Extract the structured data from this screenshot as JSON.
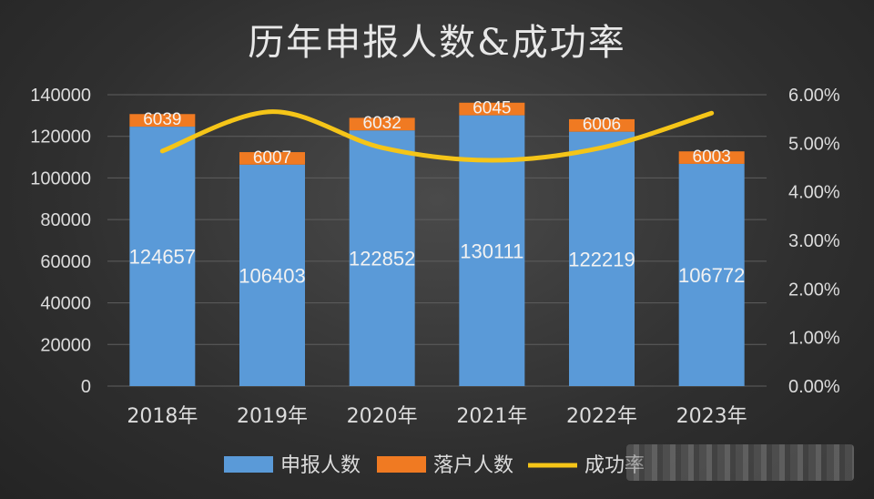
{
  "chart_data": {
    "type": "bar",
    "title": "历年申报人数&成功率",
    "categories": [
      "2018年",
      "2019年",
      "2020年",
      "2021年",
      "2022年",
      "2023年"
    ],
    "series": [
      {
        "name": "申报人数",
        "type": "bar",
        "stacked": true,
        "color": "#5a9ad8",
        "values": [
          124657,
          106403,
          122852,
          130111,
          122219,
          106772
        ]
      },
      {
        "name": "落户人数",
        "type": "bar",
        "stacked": true,
        "color": "#f07a22",
        "values": [
          6039,
          6007,
          6032,
          6045,
          6006,
          6003
        ]
      },
      {
        "name": "成功率",
        "type": "line",
        "axis": "right",
        "color": "#f5c518",
        "values": [
          4.84,
          5.65,
          4.91,
          4.65,
          4.91,
          5.62
        ]
      }
    ],
    "y_left": {
      "min": 0,
      "max": 140000,
      "ticks": [
        0,
        20000,
        40000,
        60000,
        80000,
        100000,
        120000,
        140000
      ]
    },
    "y_right": {
      "min": 0,
      "max": 6,
      "ticks": [
        "0.00%",
        "1.00%",
        "2.00%",
        "3.00%",
        "4.00%",
        "5.00%",
        "6.00%"
      ]
    },
    "grid": true,
    "legend_position": "bottom"
  }
}
